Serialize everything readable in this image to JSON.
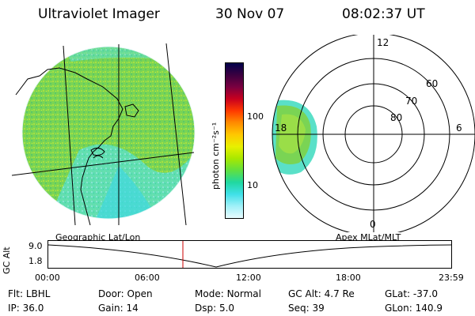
{
  "header": {
    "title": "Ultraviolet Imager",
    "date": "30 Nov 07",
    "time": "08:02:37 UT"
  },
  "left_panel": {
    "label": "Geographic Lat/Lon"
  },
  "right_panel": {
    "label": "Apex MLat/MLT",
    "mlt_labels": {
      "top": "12",
      "left": "18",
      "right": "6",
      "bottom": "0"
    },
    "lat_labels": [
      "60",
      "70",
      "80"
    ]
  },
  "colorbar": {
    "axis_label": "photon cm⁻²s⁻¹",
    "ticks": [
      "100",
      "10"
    ],
    "colors": [
      "#00004a",
      "#3c0040",
      "#7a0040",
      "#c8001e",
      "#ff3a00",
      "#ff8c00",
      "#ffc800",
      "#e8f000",
      "#a8e800",
      "#60e040",
      "#20d8a0",
      "#40e0e8",
      "#a0f0f8",
      "#e8fcff"
    ]
  },
  "timeline": {
    "axis_title": "GC Alt",
    "y_ticks": [
      "9.0",
      "1.8"
    ],
    "x_ticks": [
      "00:00",
      "06:00",
      "12:00",
      "18:00",
      "23:59"
    ],
    "marker_color": "#cc0000"
  },
  "info_rows": [
    [
      {
        "label": "Flt:",
        "value": "LBHL"
      },
      {
        "label": "Door:",
        "value": "Open"
      },
      {
        "label": "Mode:",
        "value": "Normal"
      },
      {
        "label": "GC Alt:",
        "value": "4.7 Re"
      },
      {
        "label": "GLat:",
        "value": "-37.0"
      }
    ],
    [
      {
        "label": "IP:",
        "value": "36.0"
      },
      {
        "label": "Gain:",
        "value": "14"
      },
      {
        "label": "Dsp:",
        "value": "5.0"
      },
      {
        "label": "Seq:",
        "value": "39"
      },
      {
        "label": "GLon:",
        "value": "140.9"
      }
    ]
  ],
  "colors": {
    "aurora_green": "#78d850",
    "aurora_cyan": "#58e0d8",
    "aurora_yellow": "#c8e840"
  }
}
